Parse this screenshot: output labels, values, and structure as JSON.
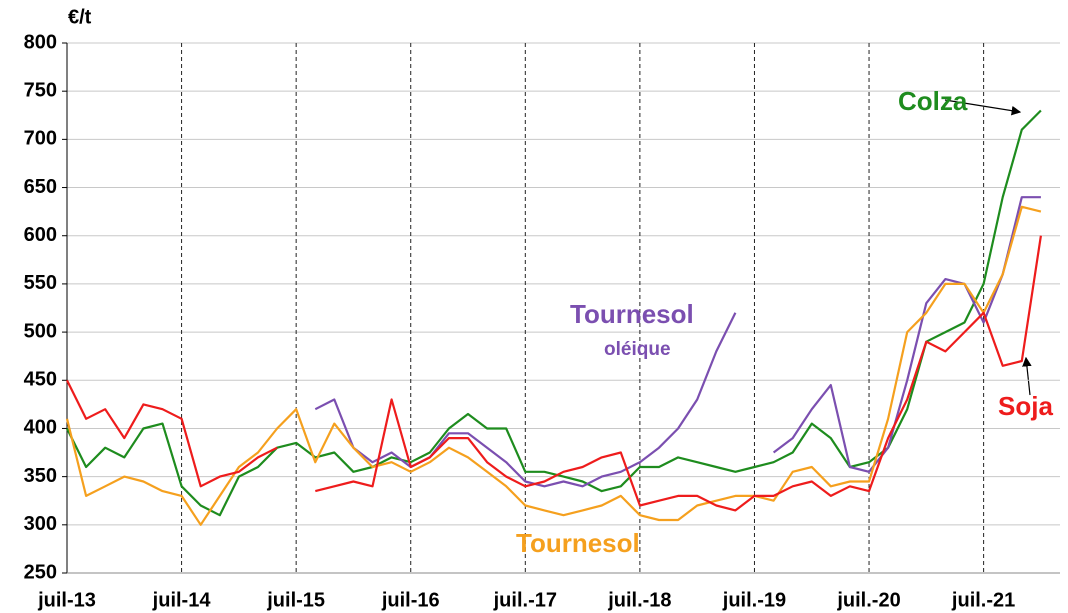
{
  "chart_data": {
    "type": "line",
    "unit": "€/t",
    "x": [
      "2013-07",
      "2013-09",
      "2013-11",
      "2014-01",
      "2014-03",
      "2014-05",
      "2014-07",
      "2014-09",
      "2014-11",
      "2015-01",
      "2015-03",
      "2015-05",
      "2015-07",
      "2015-09",
      "2015-11",
      "2016-01",
      "2016-03",
      "2016-05",
      "2016-07",
      "2016-09",
      "2016-11",
      "2017-01",
      "2017-03",
      "2017-05",
      "2017-07",
      "2017-09",
      "2017-11",
      "2018-01",
      "2018-03",
      "2018-05",
      "2018-07",
      "2018-09",
      "2018-11",
      "2019-01",
      "2019-03",
      "2019-05",
      "2019-07",
      "2019-09",
      "2019-11",
      "2020-01",
      "2020-03",
      "2020-05",
      "2020-07",
      "2020-09",
      "2020-11",
      "2021-01",
      "2021-03",
      "2021-05",
      "2021-07",
      "2021-09",
      "2021-11",
      "2022-01"
    ],
    "series": [
      {
        "name": "Colza",
        "color": "#1e8c1e",
        "values": [
          400,
          360,
          380,
          370,
          400,
          405,
          340,
          320,
          310,
          350,
          360,
          380,
          385,
          370,
          375,
          355,
          360,
          370,
          365,
          375,
          400,
          415,
          400,
          400,
          355,
          355,
          350,
          345,
          335,
          340,
          360,
          360,
          370,
          365,
          360,
          355,
          360,
          365,
          375,
          405,
          390,
          360,
          365,
          380,
          420,
          490,
          500,
          510,
          550,
          640,
          710,
          730
        ]
      },
      {
        "name": "Tournesol oléique",
        "color": "#7b4fb0",
        "values": [
          null,
          null,
          null,
          null,
          null,
          null,
          null,
          null,
          null,
          null,
          null,
          null,
          null,
          420,
          430,
          380,
          365,
          375,
          360,
          370,
          395,
          395,
          380,
          365,
          345,
          340,
          345,
          340,
          350,
          355,
          365,
          380,
          400,
          430,
          480,
          520,
          null,
          375,
          390,
          420,
          445,
          360,
          355,
          380,
          450,
          530,
          555,
          550,
          510,
          560,
          640,
          640
        ]
      },
      {
        "name": "Tournesol",
        "color": "#f5a01e",
        "values": [
          410,
          330,
          340,
          350,
          345,
          335,
          330,
          300,
          330,
          360,
          375,
          400,
          420,
          365,
          405,
          380,
          360,
          365,
          355,
          365,
          380,
          370,
          355,
          340,
          320,
          315,
          310,
          315,
          320,
          330,
          310,
          305,
          305,
          320,
          325,
          330,
          330,
          325,
          355,
          360,
          340,
          345,
          345,
          410,
          500,
          520,
          550,
          550,
          520,
          560,
          630,
          625
        ]
      },
      {
        "name": "Soja",
        "color": "#ee1c1c",
        "values": [
          450,
          410,
          420,
          390,
          425,
          420,
          410,
          340,
          350,
          355,
          370,
          380,
          null,
          335,
          340,
          345,
          340,
          430,
          360,
          370,
          390,
          390,
          365,
          350,
          340,
          345,
          355,
          360,
          370,
          375,
          320,
          325,
          330,
          330,
          320,
          315,
          330,
          330,
          340,
          345,
          330,
          340,
          335,
          390,
          430,
          490,
          480,
          500,
          520,
          465,
          470,
          600
        ]
      }
    ],
    "annotations": [
      {
        "text": "Colza",
        "color": "#1e8c1e"
      },
      {
        "text": "Tournesol",
        "color": "#7b4fb0"
      },
      {
        "text": "oléique",
        "color": "#7b4fb0"
      },
      {
        "text": "Tournesol",
        "color": "#f5a01e"
      },
      {
        "text": "Soja",
        "color": "#ee1c1c"
      }
    ],
    "xlim": [
      "2013-07",
      "2022-03"
    ],
    "xticks": [
      {
        "value": "2013-07",
        "label": "juil-13"
      },
      {
        "value": "2014-07",
        "label": "juil-14"
      },
      {
        "value": "2015-07",
        "label": "juil-15"
      },
      {
        "value": "2016-07",
        "label": "juil-16"
      },
      {
        "value": "2017-07",
        "label": "juil.-17"
      },
      {
        "value": "2018-07",
        "label": "juil.-18"
      },
      {
        "value": "2019-07",
        "label": "juil.-19"
      },
      {
        "value": "2020-07",
        "label": "juil.-20"
      },
      {
        "value": "2021-07",
        "label": "juil.-21"
      }
    ],
    "ylim": [
      250,
      800
    ],
    "yticks": [
      250,
      300,
      350,
      400,
      450,
      500,
      550,
      600,
      650,
      700,
      750,
      800
    ],
    "grid": true
  }
}
